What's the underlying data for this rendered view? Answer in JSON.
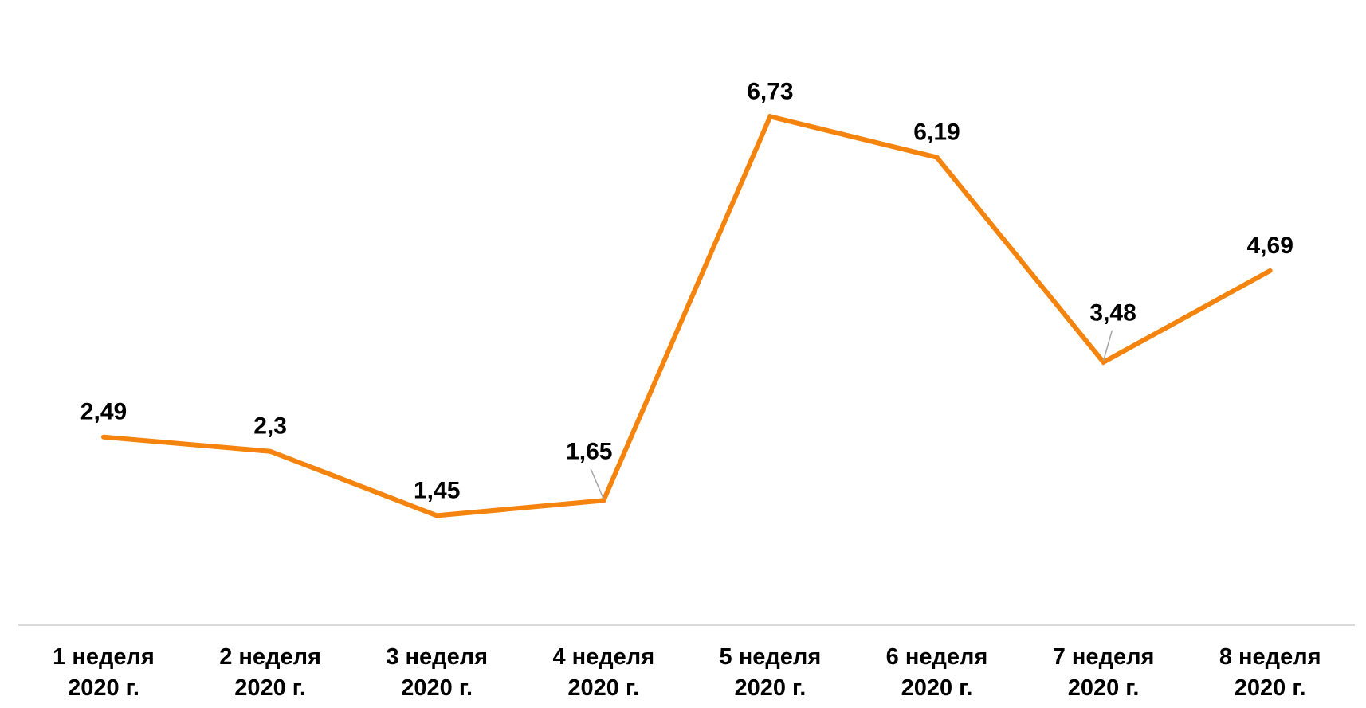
{
  "chart_data": {
    "type": "line",
    "categories": [
      [
        "1 неделя",
        "2020 г."
      ],
      [
        "2 неделя",
        "2020 г."
      ],
      [
        "3 неделя",
        "2020 г."
      ],
      [
        "4 неделя",
        "2020 г."
      ],
      [
        "5 неделя",
        "2020 г."
      ],
      [
        "6 неделя",
        "2020 г."
      ],
      [
        "7 неделя",
        "2020 г."
      ],
      [
        "8 неделя",
        "2020 г."
      ]
    ],
    "values": [
      2.49,
      2.3,
      1.45,
      1.65,
      6.73,
      6.19,
      3.48,
      4.69
    ],
    "data_labels": [
      "2,49",
      "2,3",
      "1,45",
      "1,65",
      "6,73",
      "6,19",
      "3,48",
      "4,69"
    ],
    "title": "",
    "xlabel": "",
    "ylabel": "",
    "ylim": [
      0,
      7.2
    ],
    "grid": false,
    "legend": "none",
    "line_color": "#F5840F",
    "axis_color": "#D9D9D9"
  }
}
